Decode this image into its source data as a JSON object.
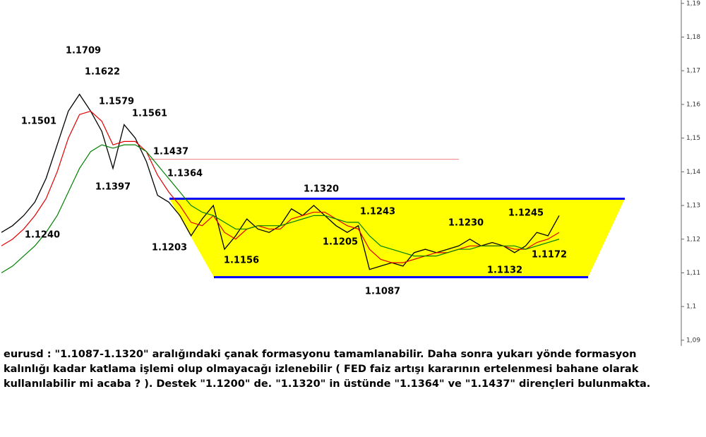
{
  "chart_data": {
    "type": "line",
    "ylim": [
      1.0883,
      1.191
    ],
    "yticks": [
      {
        "value": 1.09,
        "label": "1,09"
      },
      {
        "value": 1.1,
        "label": "1,1"
      },
      {
        "value": 1.11,
        "label": "1,11"
      },
      {
        "value": 1.12,
        "label": "1,12"
      },
      {
        "value": 1.13,
        "label": "1,13"
      },
      {
        "value": 1.14,
        "label": "1,14"
      },
      {
        "value": 1.15,
        "label": "1,15"
      },
      {
        "value": 1.16,
        "label": "1,16"
      },
      {
        "value": 1.17,
        "label": "1,17"
      },
      {
        "value": 1.18,
        "label": "1,18"
      },
      {
        "value": 1.19,
        "label": "1,19"
      }
    ],
    "series": [
      {
        "color": "#000000",
        "values": [
          1.122,
          1.124,
          1.127,
          1.131,
          1.138,
          1.148,
          1.158,
          1.163,
          1.158,
          1.152,
          1.141,
          1.154,
          1.15,
          1.143,
          1.133,
          1.131,
          1.127,
          1.121,
          1.126,
          1.13,
          1.117,
          1.121,
          1.126,
          1.123,
          1.122,
          1.124,
          1.129,
          1.127,
          1.13,
          1.127,
          1.124,
          1.122,
          1.124,
          1.111,
          1.112,
          1.113,
          1.112,
          1.116,
          1.117,
          1.116,
          1.117,
          1.118,
          1.12,
          1.118,
          1.119,
          1.118,
          1.116,
          1.118,
          1.122,
          1.121,
          1.127
        ]
      },
      {
        "color": "#e00000",
        "values": [
          1.118,
          1.12,
          1.123,
          1.127,
          1.132,
          1.14,
          1.15,
          1.157,
          1.158,
          1.155,
          1.148,
          1.149,
          1.149,
          1.146,
          1.139,
          1.134,
          1.13,
          1.125,
          1.124,
          1.127,
          1.122,
          1.12,
          1.123,
          1.124,
          1.123,
          1.123,
          1.126,
          1.127,
          1.128,
          1.128,
          1.126,
          1.124,
          1.123,
          1.117,
          1.114,
          1.113,
          1.113,
          1.114,
          1.115,
          1.116,
          1.116,
          1.117,
          1.118,
          1.118,
          1.118,
          1.118,
          1.117,
          1.117,
          1.119,
          1.12,
          1.122
        ]
      },
      {
        "color": "#008000",
        "values": [
          1.11,
          1.112,
          1.115,
          1.118,
          1.122,
          1.127,
          1.134,
          1.141,
          1.146,
          1.148,
          1.147,
          1.148,
          1.148,
          1.146,
          1.142,
          1.138,
          1.134,
          1.13,
          1.128,
          1.127,
          1.125,
          1.123,
          1.123,
          1.124,
          1.124,
          1.124,
          1.125,
          1.126,
          1.127,
          1.127,
          1.126,
          1.125,
          1.125,
          1.121,
          1.118,
          1.117,
          1.116,
          1.115,
          1.115,
          1.115,
          1.116,
          1.117,
          1.117,
          1.118,
          1.118,
          1.118,
          1.118,
          1.117,
          1.118,
          1.119,
          1.12
        ]
      }
    ],
    "horizontal_lines": [
      {
        "value": 1.132,
        "color": "#0000ff"
      },
      {
        "value": 1.1087,
        "color": "#0000ff"
      },
      {
        "value": 1.1437,
        "color": "#f08080"
      }
    ],
    "band_color": "#ffff00",
    "annotations": [
      "1.1709",
      "1.1622",
      "1.1501",
      "1.1579",
      "1.1561",
      "1.1437",
      "1.1364",
      "1.1397",
      "1.1240",
      "1.1203",
      "1.1320",
      "1.1243",
      "1.1205",
      "1.1156",
      "1.1087",
      "1.1230",
      "1.1245",
      "1.1172",
      "1.1132"
    ]
  },
  "caption": "eurusd : \"1.1087-1.1320\" aralığındaki çanak formasyonu tamamlanabilir. Daha sonra yukarı yönde formasyon kalınlığı kadar katlama işlemi olup olmayacağı izlenebilir ( FED faiz artışı kararının ertelenmesi bahane olarak kullanılabilir mi acaba ? ). Destek \"1.1200\" de. \"1.1320\" in üstünde \"1.1364\" ve \"1.1437\" dirençleri bulunmakta."
}
